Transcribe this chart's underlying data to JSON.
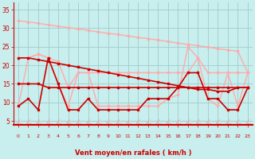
{
  "xlabel": "Vent moyen/en rafales ( km/h )",
  "xlim": [
    -0.5,
    23.5
  ],
  "ylim": [
    4,
    37
  ],
  "yticks": [
    5,
    10,
    15,
    20,
    25,
    30,
    35
  ],
  "xticks": [
    0,
    1,
    2,
    3,
    4,
    5,
    6,
    7,
    8,
    9,
    10,
    11,
    12,
    13,
    14,
    15,
    16,
    17,
    18,
    19,
    20,
    21,
    22,
    23
  ],
  "bg_color": "#c8eeed",
  "grid_color": "#a0cccc",
  "dark_red": "#cc0000",
  "light_pink": "#ff9999",
  "x": [
    0,
    1,
    2,
    3,
    4,
    5,
    6,
    7,
    8,
    9,
    10,
    11,
    12,
    13,
    14,
    15,
    16,
    17,
    18,
    19,
    20,
    21,
    22,
    23
  ],
  "lines": [
    {
      "color": "#ffaaaa",
      "lw": 1.0,
      "data": [
        32,
        31.7,
        31.3,
        30.9,
        30.5,
        30.2,
        29.8,
        29.4,
        29.0,
        28.6,
        28.3,
        27.9,
        27.5,
        27.2,
        26.8,
        26.4,
        26.0,
        25.6,
        25.3,
        24.9,
        24.5,
        24.1,
        23.8,
        18.0
      ],
      "marker": "s",
      "ms": 1.5
    },
    {
      "color": "#ffaaaa",
      "lw": 1.0,
      "data": [
        9,
        22,
        23,
        22,
        15,
        9,
        18,
        18,
        9,
        9,
        9,
        9,
        9,
        9,
        9,
        11,
        12,
        25,
        22,
        11,
        9,
        18,
        9,
        18
      ],
      "marker": "s",
      "ms": 1.5
    },
    {
      "color": "#ffaaaa",
      "lw": 1.0,
      "data": [
        22,
        22,
        23,
        22,
        21,
        14,
        18,
        18,
        18,
        18,
        18,
        18,
        18,
        18,
        18,
        18,
        18,
        18,
        22,
        18,
        18,
        18,
        18,
        18
      ],
      "marker": "s",
      "ms": 1.5
    },
    {
      "color": "#cc0000",
      "lw": 1.2,
      "data": [
        22,
        22,
        21.5,
        21.0,
        20.5,
        20.0,
        19.5,
        19.0,
        18.5,
        18.0,
        17.5,
        17.0,
        16.5,
        16.0,
        15.5,
        15.0,
        14.5,
        14.0,
        13.5,
        13.5,
        13.0,
        13.0,
        14.0,
        14.0
      ],
      "marker": "s",
      "ms": 1.5
    },
    {
      "color": "#cc0000",
      "lw": 1.2,
      "data": [
        9,
        11,
        8,
        22,
        15,
        8,
        8,
        11,
        8,
        8,
        8,
        8,
        8,
        11,
        11,
        11,
        14,
        18,
        18,
        11,
        11,
        8,
        8,
        14
      ],
      "marker": "s",
      "ms": 1.5
    },
    {
      "color": "#cc0000",
      "lw": 1.2,
      "data": [
        15,
        15,
        15,
        14,
        14,
        14,
        14,
        14,
        14,
        14,
        14,
        14,
        14,
        14,
        14,
        14,
        14,
        14,
        14,
        14,
        14,
        14,
        14,
        14
      ],
      "marker": "s",
      "ms": 1.5
    }
  ]
}
